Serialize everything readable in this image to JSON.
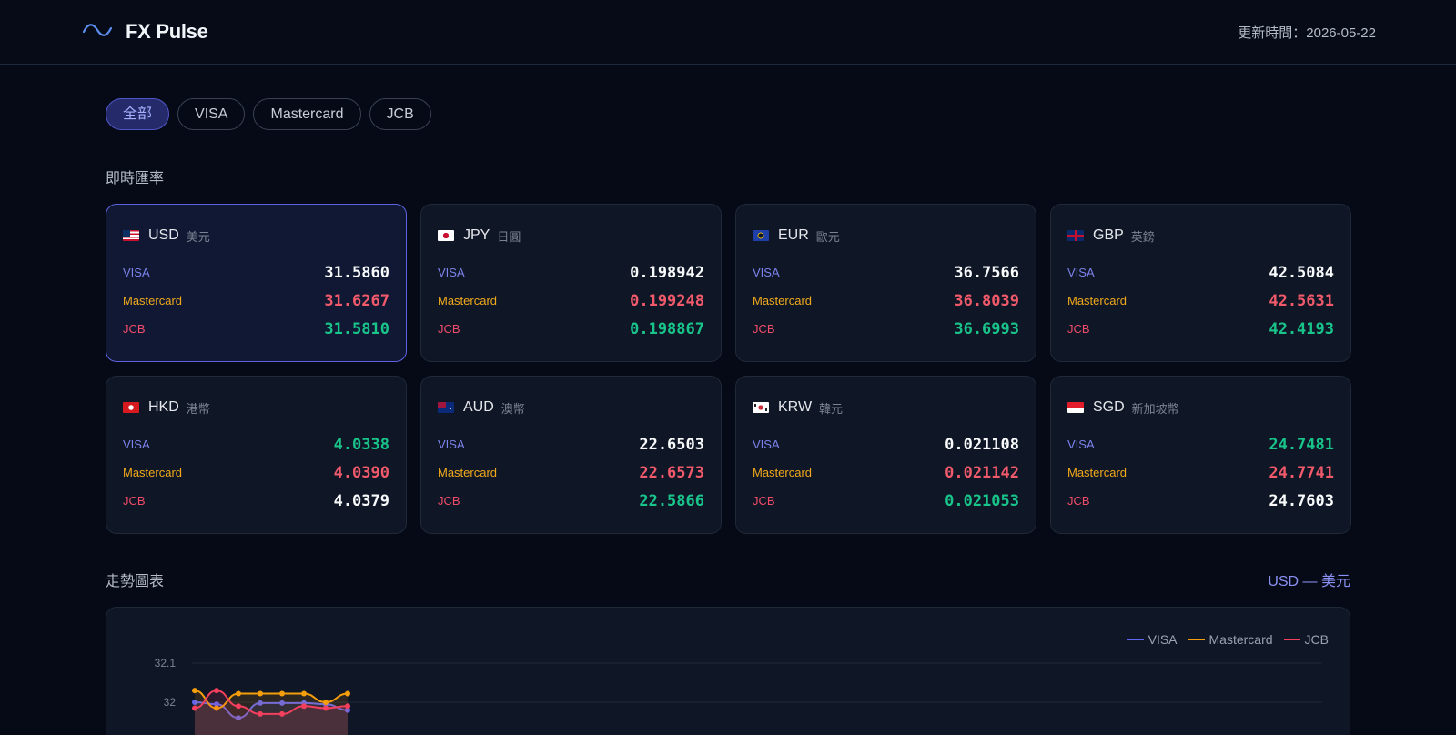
{
  "app": {
    "name": "FX Pulse",
    "logo_icon": "wave-icon",
    "updated_label": "更新時間：2026-05-22"
  },
  "filters": [
    {
      "label": "全部",
      "active": true
    },
    {
      "label": "VISA",
      "active": false
    },
    {
      "label": "Mastercard",
      "active": false
    },
    {
      "label": "JCB",
      "active": false
    }
  ],
  "rates_section": {
    "title": "即時匯率"
  },
  "networks": {
    "visa": "VISA",
    "mastercard": "Mastercard",
    "jcb": "JCB"
  },
  "colors": {
    "visa": "#6366f1",
    "mastercard": "#f59e0b",
    "jcb": "#f43f5e",
    "up": "#f05a6a",
    "down": "#19c48b",
    "accent": "#5b63e0"
  },
  "currencies": [
    {
      "code": "USD",
      "name": "美元",
      "flag": "us-flag-icon",
      "visa": "31.5860",
      "mastercard": "31.6267",
      "jcb": "31.5810",
      "visa_trend": "neutral",
      "mastercard_trend": "up",
      "jcb_trend": "down",
      "selected": true
    },
    {
      "code": "JPY",
      "name": "日圓",
      "flag": "jp-flag-icon",
      "visa": "0.198942",
      "mastercard": "0.199248",
      "jcb": "0.198867",
      "visa_trend": "neutral",
      "mastercard_trend": "up",
      "jcb_trend": "down"
    },
    {
      "code": "EUR",
      "name": "歐元",
      "flag": "eu-flag-icon",
      "visa": "36.7566",
      "mastercard": "36.8039",
      "jcb": "36.6993",
      "visa_trend": "neutral",
      "mastercard_trend": "up",
      "jcb_trend": "down"
    },
    {
      "code": "GBP",
      "name": "英鎊",
      "flag": "gb-flag-icon",
      "visa": "42.5084",
      "mastercard": "42.5631",
      "jcb": "42.4193",
      "visa_trend": "neutral",
      "mastercard_trend": "up",
      "jcb_trend": "down"
    },
    {
      "code": "HKD",
      "name": "港幣",
      "flag": "hk-flag-icon",
      "visa": "4.0338",
      "mastercard": "4.0390",
      "jcb": "4.0379",
      "visa_trend": "down",
      "mastercard_trend": "up",
      "jcb_trend": "neutral"
    },
    {
      "code": "AUD",
      "name": "澳幣",
      "flag": "au-flag-icon",
      "visa": "22.6503",
      "mastercard": "22.6573",
      "jcb": "22.5866",
      "visa_trend": "neutral",
      "mastercard_trend": "up",
      "jcb_trend": "down"
    },
    {
      "code": "KRW",
      "name": "韓元",
      "flag": "kr-flag-icon",
      "visa": "0.021108",
      "mastercard": "0.021142",
      "jcb": "0.021053",
      "visa_trend": "neutral",
      "mastercard_trend": "up",
      "jcb_trend": "down"
    },
    {
      "code": "SGD",
      "name": "新加坡幣",
      "flag": "sg-flag-icon",
      "visa": "24.7481",
      "mastercard": "24.7741",
      "jcb": "24.7603",
      "visa_trend": "down",
      "mastercard_trend": "up",
      "jcb_trend": "neutral"
    }
  ],
  "trend_section": {
    "title": "走勢圖表",
    "selected_label": "USD — 美元"
  },
  "chart_data": {
    "type": "line",
    "title": "",
    "xlabel": "",
    "ylabel": "",
    "y_ticks": [
      32.1,
      32
    ],
    "ylim": [
      31.9,
      32.1
    ],
    "legend_position": "top-right",
    "grid": true,
    "x": [
      0,
      1,
      2,
      3,
      4,
      5,
      6,
      7
    ],
    "series": [
      {
        "name": "VISA",
        "color": "#6366f1",
        "values": [
          32.0,
          31.995,
          31.96,
          31.998,
          31.998,
          31.998,
          31.995,
          31.98
        ]
      },
      {
        "name": "Mastercard",
        "color": "#f59e0b",
        "values": [
          32.03,
          31.985,
          32.022,
          32.022,
          32.022,
          32.022,
          32.0,
          32.022
        ]
      },
      {
        "name": "JCB",
        "color": "#f43f5e",
        "values": [
          31.985,
          32.03,
          31.99,
          31.97,
          31.97,
          31.99,
          31.985,
          31.99
        ]
      }
    ]
  }
}
